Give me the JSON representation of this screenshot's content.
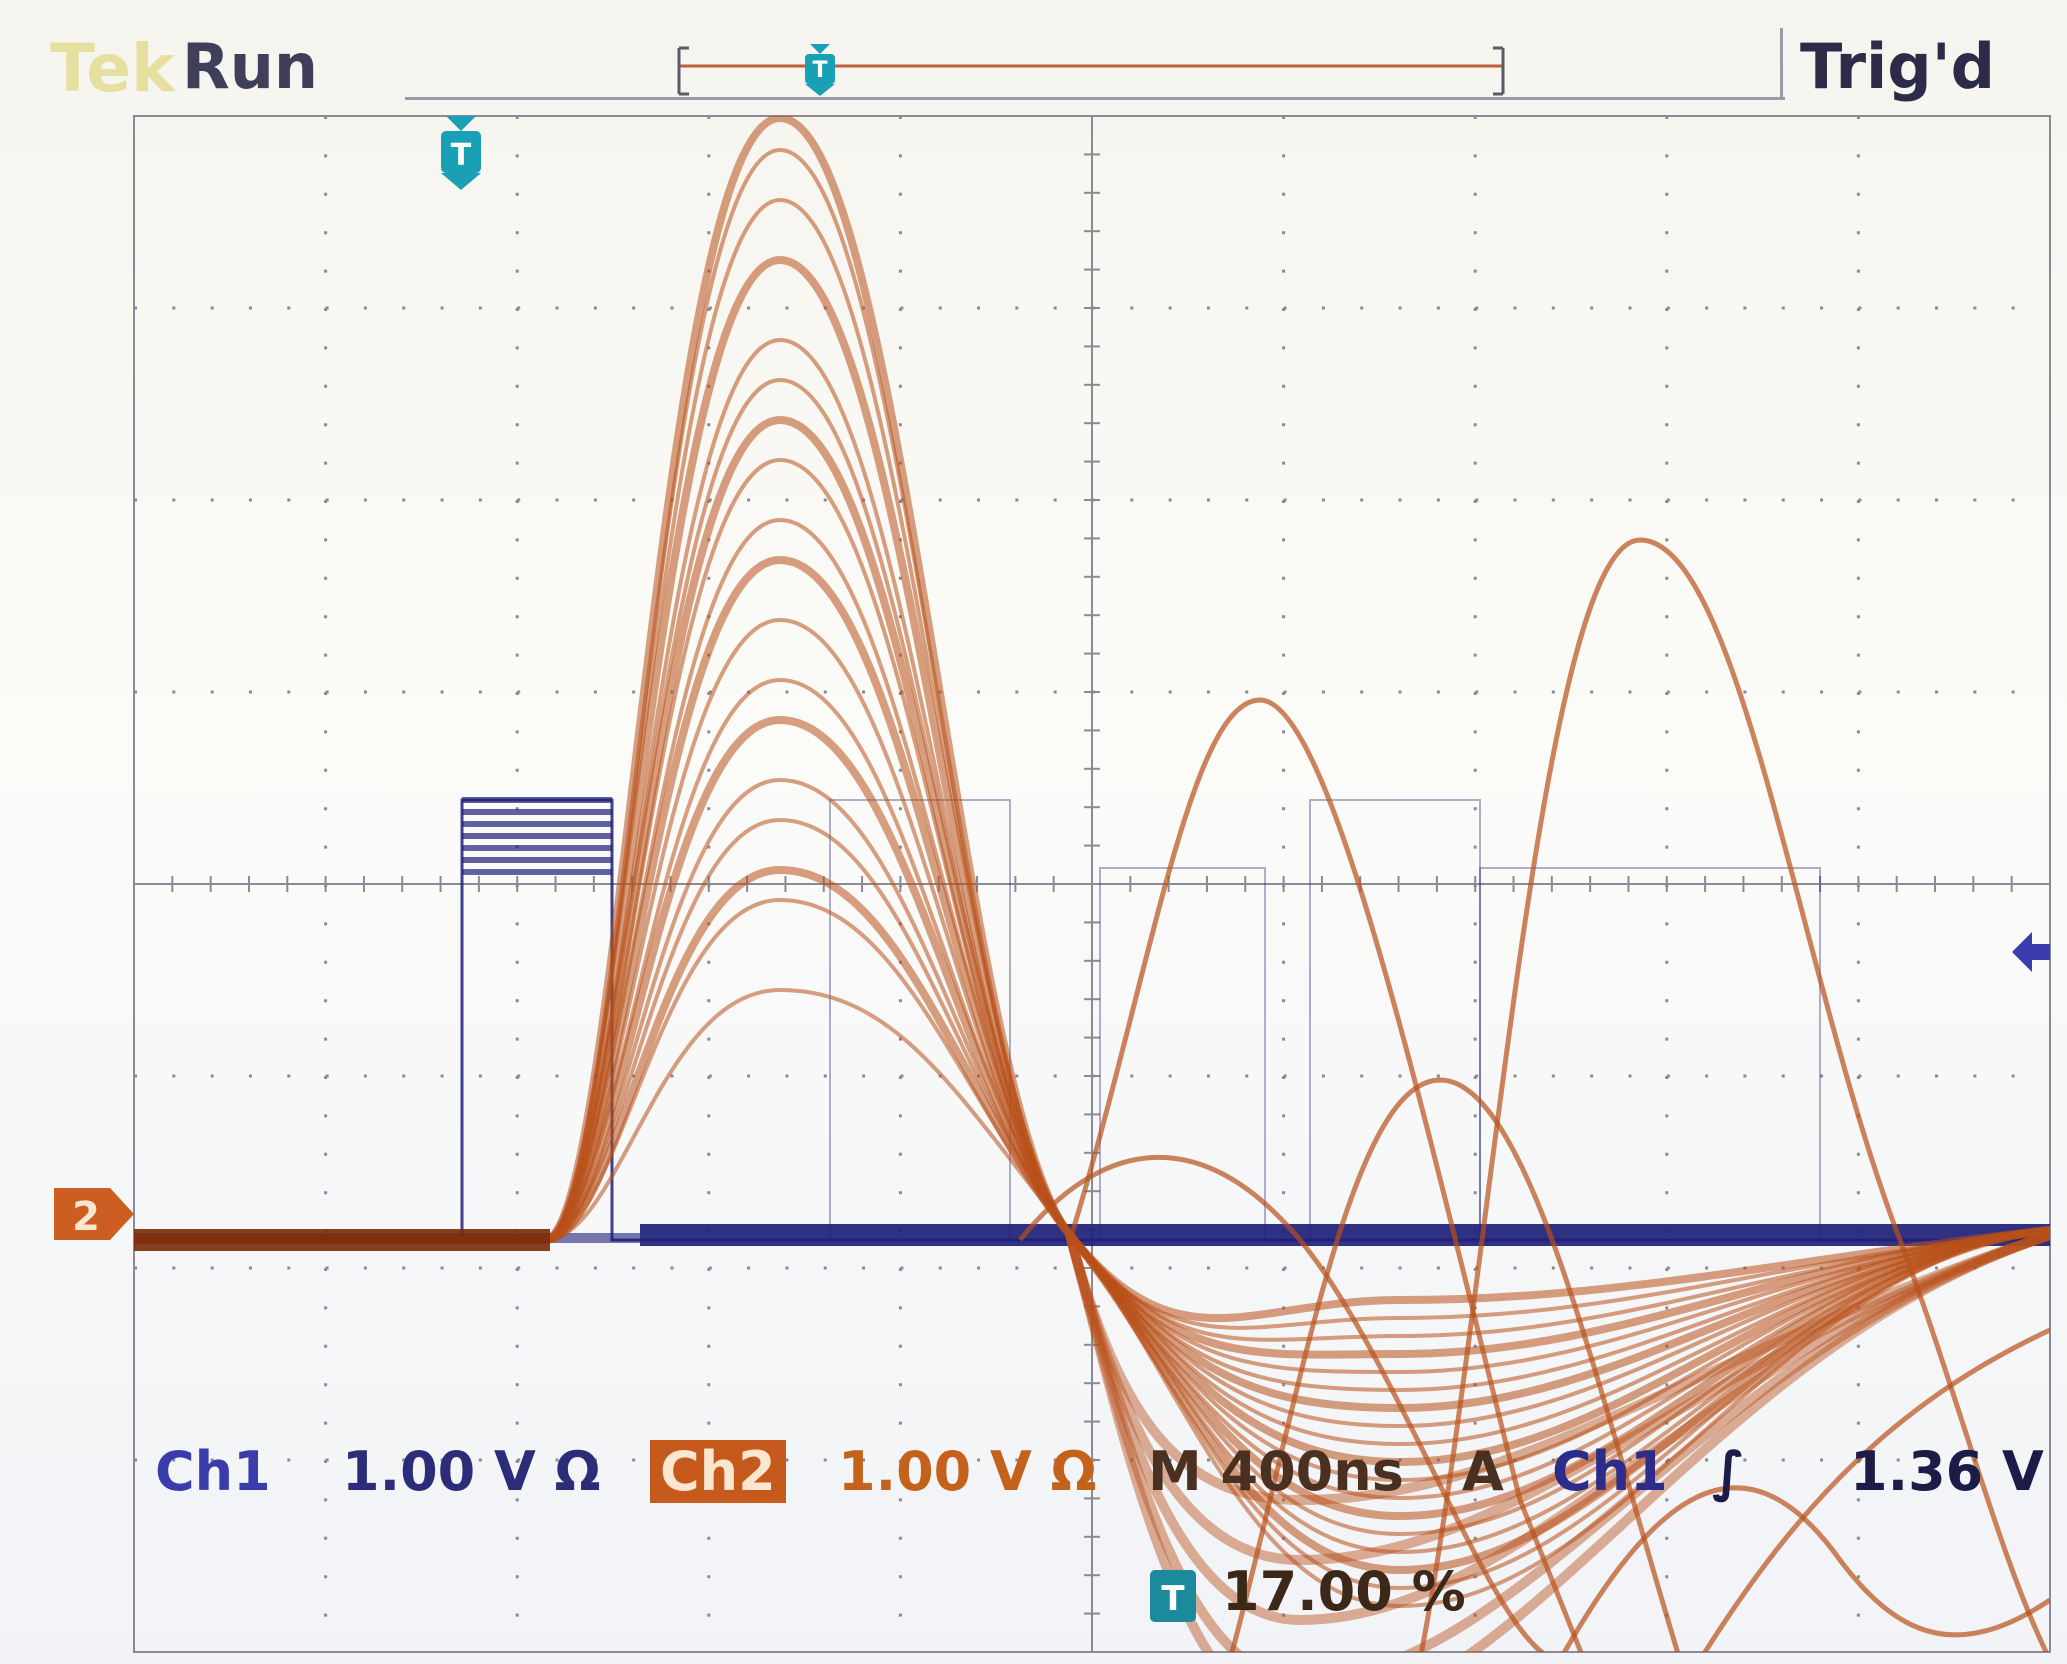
{
  "header": {
    "brand": "Tek",
    "acq_state": "Run",
    "trigger_state": "Trig'd"
  },
  "markers": {
    "trigger_position_icon": "trigger-position-marker",
    "ch2_ground_label": "2",
    "trigger_level_icon": "trigger-level-arrow"
  },
  "readout": {
    "ch1_label": "Ch1",
    "ch1_scale": "1.00 V Ω",
    "ch2_label": "Ch2",
    "ch2_scale": "1.00 V Ω",
    "timebase": "M 400ns",
    "trigger_source_prefix": "A",
    "trigger_channel": "Ch1",
    "trigger_slope": "∫",
    "trigger_level": "1.36 V",
    "trigger_position": "17.00 %"
  },
  "colors": {
    "ch1": "#1f1f7a",
    "ch2": "#b8501a",
    "grid": "#8a8a96",
    "marker": "#1aa0b4"
  }
}
